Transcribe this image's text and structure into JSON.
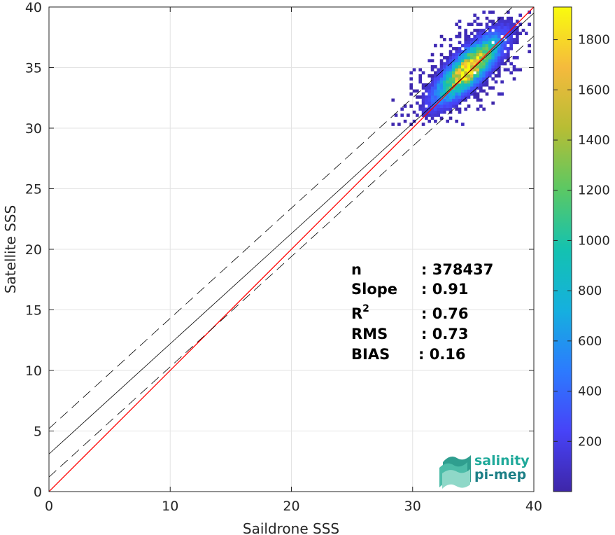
{
  "chart_data": {
    "type": "heatmap",
    "xlabel": "Saildrone SSS",
    "ylabel": "Satellite SSS",
    "xlim": [
      0,
      40
    ],
    "ylim": [
      0,
      40
    ],
    "xticks": [
      0,
      10,
      20,
      30,
      40
    ],
    "yticks": [
      0,
      5,
      10,
      15,
      20,
      25,
      30,
      35,
      40
    ],
    "grid": true,
    "colormap": "parula",
    "colorbar": {
      "min": 0,
      "max": 1930,
      "ticks": [
        200,
        400,
        600,
        800,
        1000,
        1200,
        1400,
        1600,
        1800
      ],
      "colors": [
        "#3e26a8",
        "#4743f8",
        "#2c7bfe",
        "#15b0de",
        "#14c2b0",
        "#5cc863",
        "#b7bd34",
        "#f5ba3d",
        "#f9fb0e"
      ]
    },
    "lines": [
      {
        "name": "1:1",
        "color": "#ff0000",
        "style": "solid",
        "x": [
          0,
          40
        ],
        "y": [
          0,
          40
        ]
      },
      {
        "name": "fit",
        "color": "#000000",
        "style": "solid",
        "x": [
          0,
          40
        ],
        "y": [
          3.1,
          39.5
        ]
      },
      {
        "name": "fit + std",
        "color": "#000000",
        "style": "dashed",
        "x": [
          0,
          40
        ],
        "y": [
          5.2,
          41.6
        ]
      },
      {
        "name": "fit - std",
        "color": "#000000",
        "style": "dashed",
        "x": [
          0,
          40
        ],
        "y": [
          1.2,
          37.6
        ]
      }
    ],
    "density_cluster": {
      "center": [
        34.5,
        34.8
      ],
      "x_range": [
        27.5,
        39.5
      ],
      "y_range": [
        30.2,
        39.5
      ],
      "peak_count": 1900
    },
    "stats": [
      {
        "label": "n",
        "value": ": 378437"
      },
      {
        "label": "Slope",
        "value": ": 0.91"
      },
      {
        "label": "R",
        "sup": "2",
        "value": ": 0.76"
      },
      {
        "label": "RMS",
        "value": ": 0.73"
      },
      {
        "label": "BIAS",
        "value": ": 0.16"
      }
    ]
  },
  "logo": {
    "line1": "salinity",
    "line2": "pi-mep",
    "color1": "#1fa99a",
    "color2": "#1c7f86"
  }
}
